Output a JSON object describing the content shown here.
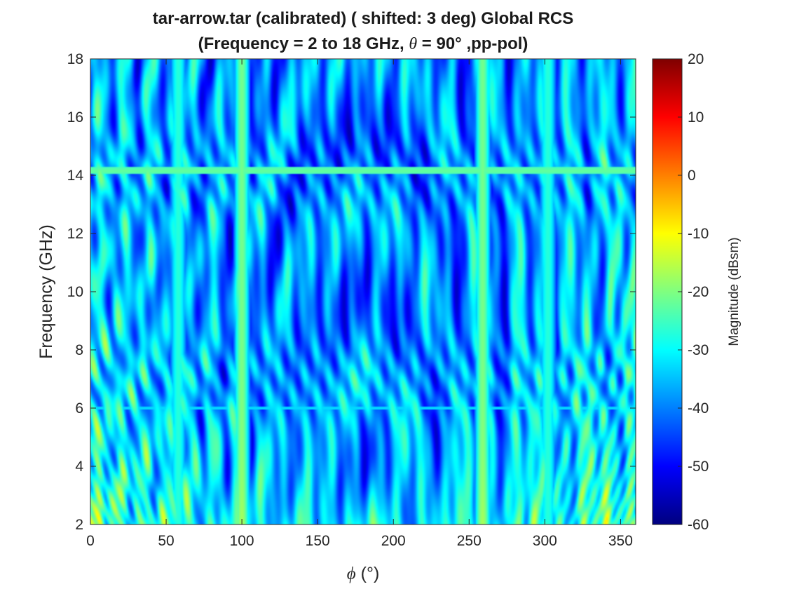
{
  "chart_data": {
    "type": "heatmap",
    "title_line1": "tar-arrow.tar (calibrated) ( shifted: 3 deg) Global RCS",
    "title_line2_prefix": "(Frequency = 2 to 18 GHz, ",
    "title_theta_symbol": "θ",
    "title_line2_suffix": " = 90° ,pp-pol)",
    "xlabel_symbol": "ϕ",
    "xlabel_unit": " (°)",
    "ylabel": "Frequency (GHz)",
    "colorbar_label": "Magnitude (dBsm)",
    "colormap": "jet",
    "xlim": [
      0,
      360
    ],
    "ylim": [
      2,
      18
    ],
    "clim": [
      -60,
      20
    ],
    "x_ticks": [
      0,
      50,
      100,
      150,
      200,
      250,
      300,
      350
    ],
    "y_ticks": [
      2,
      4,
      6,
      8,
      10,
      12,
      14,
      16,
      18
    ],
    "colorbar_ticks": [
      20,
      10,
      0,
      -10,
      -20,
      -30,
      -40,
      -50,
      -60
    ],
    "x_tick_labels": [
      "0",
      "50",
      "100",
      "150",
      "200",
      "250",
      "300",
      "350"
    ],
    "y_tick_labels": [
      "2",
      "4",
      "6",
      "8",
      "10",
      "12",
      "14",
      "16",
      "18"
    ],
    "colorbar_tick_labels": [
      "20",
      "10",
      "0",
      "-10",
      "-20",
      "-30",
      "-40",
      "-50",
      "-60"
    ],
    "features": {
      "specular_lines_phi_deg": [
        100,
        259
      ],
      "specular_peak_dbsm": -15,
      "horizontal_line_freq_ghz": 14.15,
      "horizontal_line_dbsm": -22,
      "background_dbsm_range": [
        -50,
        -28
      ]
    }
  }
}
